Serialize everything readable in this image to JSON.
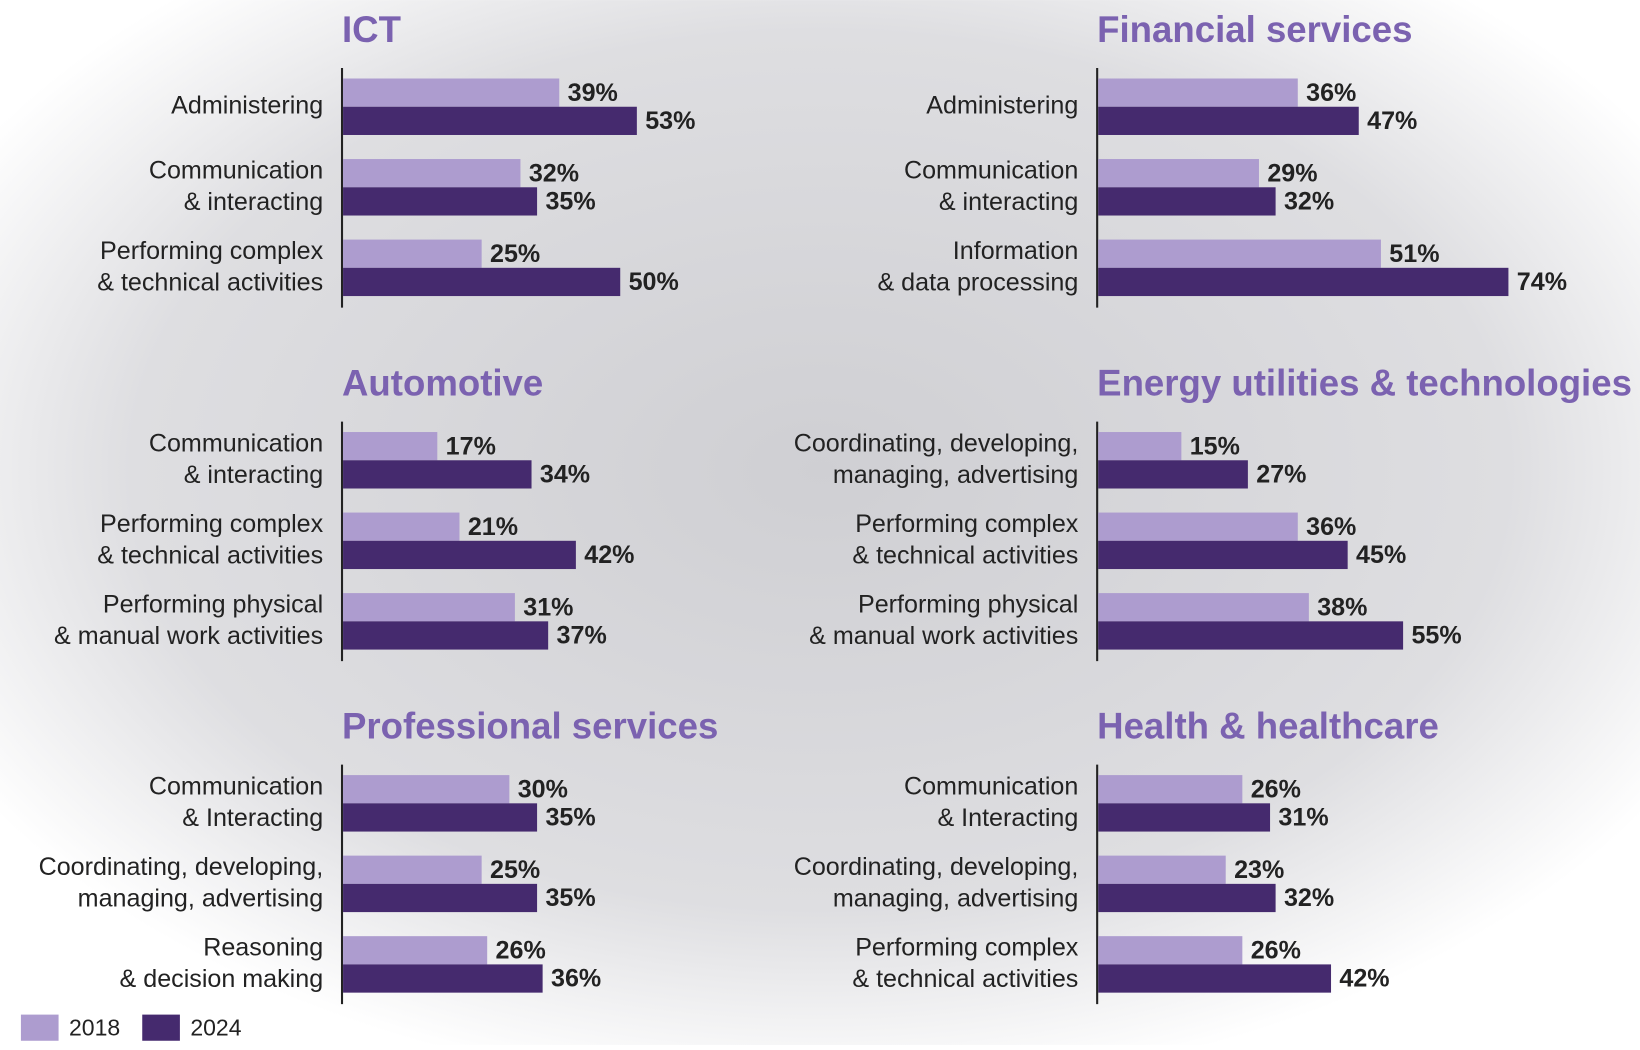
{
  "chart_data": [
    {
      "type": "bar",
      "title": "ICT",
      "categories": [
        "Administering",
        "Communication\n& interacting",
        "Performing complex\n& technical activities"
      ],
      "series": [
        {
          "name": "2018",
          "color": "#ad9ccf",
          "values": [
            39,
            32,
            25
          ],
          "value_labels": [
            "39%",
            "32%",
            "25%"
          ]
        },
        {
          "name": "2024",
          "color": "#452a6e",
          "values": [
            53,
            35,
            50
          ],
          "value_labels": [
            "53%",
            "35%",
            "50%"
          ]
        }
      ]
    },
    {
      "type": "bar",
      "title": "Financial services",
      "categories": [
        "Administering",
        "Communication\n& interacting",
        "Information\n& data processing"
      ],
      "series": [
        {
          "name": "2018",
          "color": "#ad9ccf",
          "values": [
            36,
            29,
            51
          ],
          "value_labels": [
            "36%",
            "29%",
            "51%"
          ]
        },
        {
          "name": "2024",
          "color": "#452a6e",
          "values": [
            47,
            32,
            74
          ],
          "value_labels": [
            "47%",
            "32%",
            "74%"
          ]
        }
      ]
    },
    {
      "type": "bar",
      "title": "Automotive",
      "categories": [
        "Communication\n& interacting",
        "Performing complex\n& technical activities",
        "Performing physical\n& manual work activities"
      ],
      "series": [
        {
          "name": "2018",
          "color": "#ad9ccf",
          "values": [
            17,
            21,
            31
          ],
          "value_labels": [
            "17%",
            "21%",
            "31%"
          ]
        },
        {
          "name": "2024",
          "color": "#452a6e",
          "values": [
            34,
            42,
            37
          ],
          "value_labels": [
            "34%",
            "42%",
            "37%"
          ]
        }
      ]
    },
    {
      "type": "bar",
      "title": "Energy utilities & technologies",
      "categories": [
        "Coordinating, developing,\nmanaging, advertising",
        "Performing complex\n& technical activities",
        "Performing physical\n& manual work activities"
      ],
      "series": [
        {
          "name": "2018",
          "color": "#ad9ccf",
          "values": [
            15,
            36,
            38
          ],
          "value_labels": [
            "15%",
            "36%",
            "38%"
          ]
        },
        {
          "name": "2024",
          "color": "#452a6e",
          "values": [
            27,
            45,
            55
          ],
          "value_labels": [
            "27%",
            "45%",
            "55%"
          ]
        }
      ]
    },
    {
      "type": "bar",
      "title": "Professional services",
      "categories": [
        "Communication\n& Interacting",
        "Coordinating, developing,\nmanaging, advertising",
        "Reasoning\n& decision making"
      ],
      "series": [
        {
          "name": "2018",
          "color": "#ad9ccf",
          "values": [
            30,
            25,
            26
          ],
          "value_labels": [
            "30%",
            "25%",
            "26%"
          ]
        },
        {
          "name": "2024",
          "color": "#452a6e",
          "values": [
            35,
            35,
            36
          ],
          "value_labels": [
            "35%",
            "35%",
            "36%"
          ]
        }
      ]
    },
    {
      "type": "bar",
      "title": "Health & healthcare",
      "categories": [
        "Communication\n& Interacting",
        "Coordinating, developing,\nmanaging, advertising",
        "Performing complex\n& technical activities"
      ],
      "series": [
        {
          "name": "2018",
          "color": "#ad9ccf",
          "values": [
            26,
            23,
            26
          ],
          "value_labels": [
            "26%",
            "23%",
            "26%"
          ]
        },
        {
          "name": "2024",
          "color": "#452a6e",
          "values": [
            31,
            32,
            42
          ],
          "value_labels": [
            "31%",
            "32%",
            "42%"
          ]
        }
      ]
    }
  ]
}
